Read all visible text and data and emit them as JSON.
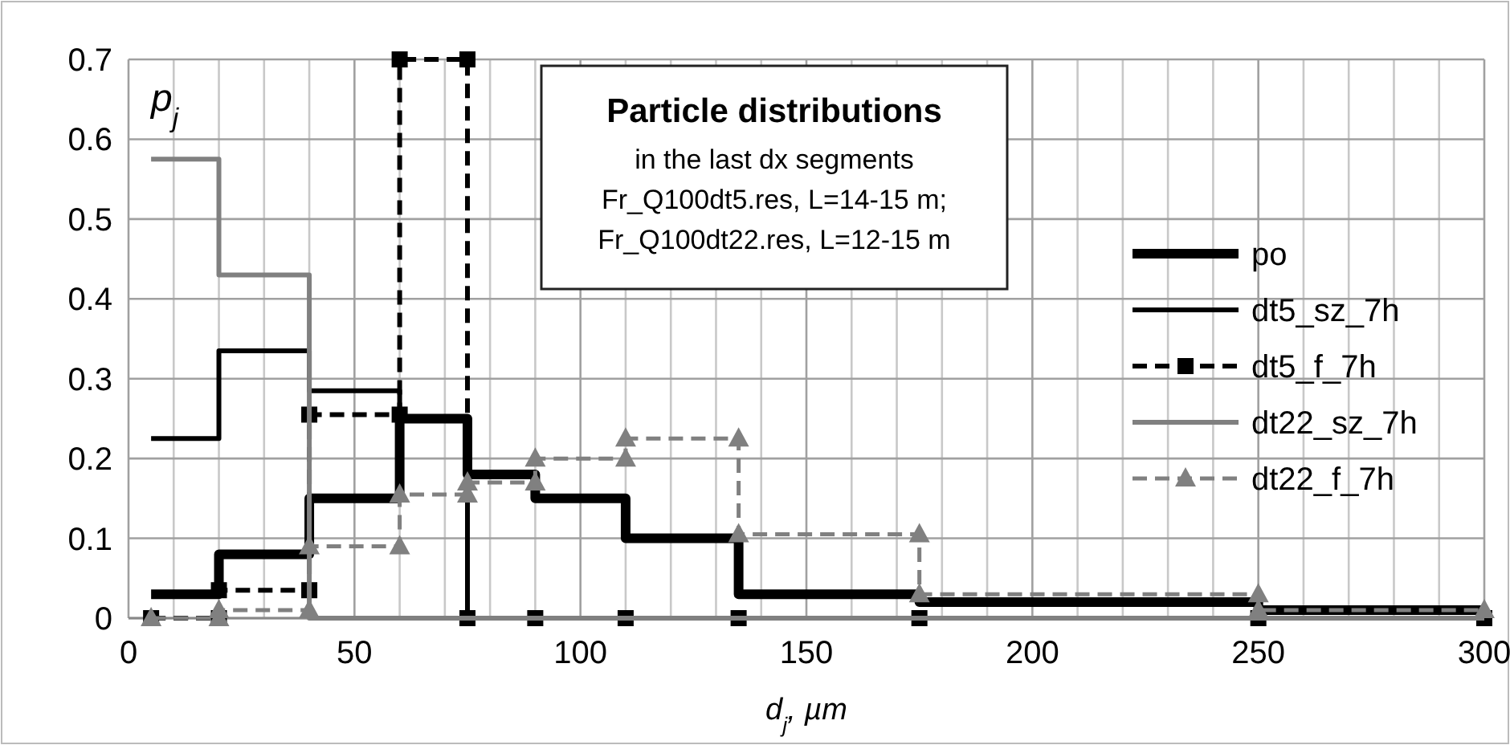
{
  "chart_data": {
    "type": "line",
    "title": "Particle distributions",
    "subtitle": "in the last dx segments",
    "annotations": [
      "Fr_Q100dt5.res, L=14-15 m;",
      "Fr_Q100dt22.res, L=12-15 m"
    ],
    "xlabel": "d$_{j}$, µm",
    "ylabel": "p$_{j}$",
    "xlim": [
      0,
      300
    ],
    "ylim": [
      0,
      0.7
    ],
    "xticks": [
      0,
      {
        "value": 10,
        "label": null
      },
      {
        "value": 20,
        "label": null
      },
      {
        "value": 30,
        "label": null
      },
      {
        "value": 40,
        "label": null
      },
      50,
      {
        "value": 60,
        "label": null
      },
      {
        "value": 70,
        "label": null
      },
      {
        "value": 80,
        "label": null
      },
      {
        "value": 90,
        "label": null
      },
      100,
      {
        "value": 110,
        "label": null
      },
      {
        "value": 120,
        "label": null
      },
      {
        "value": 130,
        "label": null
      },
      {
        "value": 140,
        "label": null
      },
      150,
      {
        "value": 160,
        "label": null
      },
      {
        "value": 170,
        "label": null
      },
      {
        "value": 180,
        "label": null
      },
      {
        "value": 190,
        "label": null
      },
      200,
      {
        "value": 210,
        "label": null
      },
      {
        "value": 220,
        "label": null
      },
      {
        "value": 230,
        "label": null
      },
      {
        "value": 240,
        "label": null
      },
      250,
      {
        "value": 260,
        "label": null
      },
      {
        "value": 270,
        "label": null
      },
      {
        "value": 280,
        "label": null
      },
      {
        "value": 290,
        "label": null
      },
      300
    ],
    "yticks": [
      0,
      0.1,
      0.2,
      0.3,
      0.4,
      0.5,
      0.6,
      0.7
    ],
    "grid": true,
    "legend": "right",
    "series": [
      {
        "name": "po",
        "color": "#000000",
        "line_style": "solid",
        "marker": "none",
        "x": [
          5,
          20,
          20,
          40,
          40,
          60,
          60,
          75,
          75,
          90,
          90,
          110,
          110,
          135,
          135,
          175,
          175,
          250,
          250,
          300
        ],
        "values": [
          0.03,
          0.03,
          0.08,
          0.08,
          0.15,
          0.15,
          0.25,
          0.25,
          0.18,
          0.18,
          0.15,
          0.15,
          0.1,
          0.1,
          0.03,
          0.03,
          0.02,
          0.02,
          0.01,
          0.01
        ]
      },
      {
        "name": "dt5_sz_7h",
        "color": "#000000",
        "line_style": "solid",
        "marker": "none",
        "x": [
          5,
          20,
          20,
          40,
          40,
          60,
          60,
          75,
          75,
          300
        ],
        "values": [
          0.225,
          0.225,
          0.335,
          0.335,
          0.285,
          0.285,
          0.25,
          0.25,
          0,
          0
        ]
      },
      {
        "name": "dt5_f_7h",
        "color": "#000000",
        "line_style": "dashed",
        "marker": "square",
        "x": [
          5,
          20,
          20,
          40,
          40,
          60,
          60,
          75,
          75,
          90,
          110,
          135,
          175,
          250,
          300
        ],
        "values": [
          0,
          0,
          0.035,
          0.035,
          0.255,
          0.255,
          0.7,
          0.7,
          0,
          0,
          0,
          0,
          0,
          0,
          0
        ]
      },
      {
        "name": "dt22_sz_7h",
        "color": "#808080",
        "line_style": "solid",
        "marker": "none",
        "x": [
          5,
          20,
          20,
          40,
          40,
          300
        ],
        "values": [
          0.575,
          0.575,
          0.43,
          0.43,
          0,
          0
        ]
      },
      {
        "name": "dt22_f_7h",
        "color": "#808080",
        "line_style": "dashed",
        "marker": "triangle",
        "x": [
          5,
          20,
          20,
          40,
          40,
          60,
          60,
          75,
          75,
          90,
          90,
          110,
          110,
          135,
          135,
          175,
          175,
          250,
          250,
          300
        ],
        "values": [
          0,
          0,
          0.01,
          0.01,
          0.09,
          0.09,
          0.155,
          0.155,
          0.17,
          0.17,
          0.2,
          0.2,
          0.225,
          0.225,
          0.105,
          0.105,
          0.03,
          0.03,
          0.01,
          0.01
        ]
      }
    ]
  }
}
